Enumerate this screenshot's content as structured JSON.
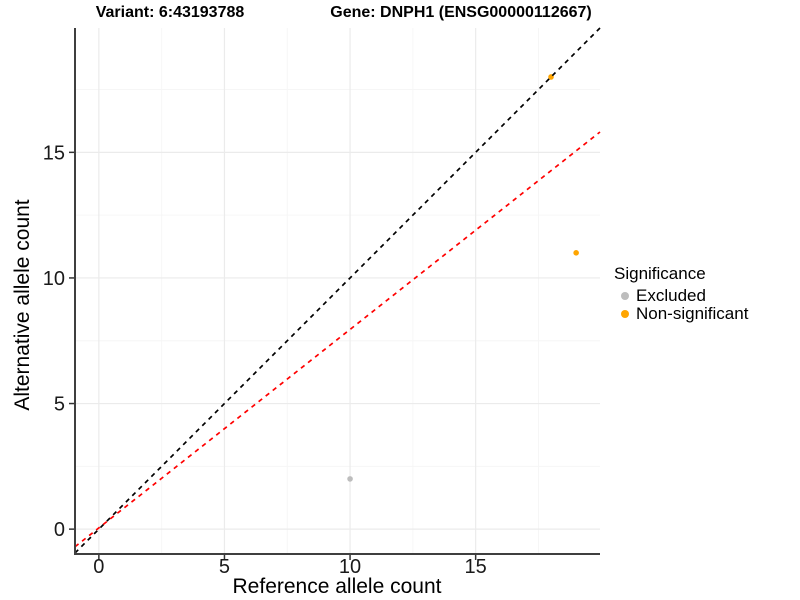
{
  "chart_data": {
    "type": "scatter",
    "titles": {
      "variant": "Variant: 6:43193788",
      "gene": "Gene: DNPH1 (ENSG00000112667)"
    },
    "xlabel": "Reference allele count",
    "ylabel": "Alternative allele count",
    "x_ticks": [
      0,
      5,
      10,
      15
    ],
    "y_ticks": [
      0,
      5,
      10,
      15
    ],
    "minor_gridlines": [
      2.5,
      7.5,
      12.5,
      17.5
    ],
    "axis_range": {
      "min": -0.95,
      "max": 19.95
    },
    "points": [
      {
        "x": 10,
        "y": 2,
        "significance": "Excluded"
      },
      {
        "x": 18,
        "y": 18,
        "significance": "Non-significant"
      },
      {
        "x": 19,
        "y": 11,
        "significance": "Non-significant"
      }
    ],
    "lines": [
      {
        "name": "identity-line",
        "slope": 1,
        "intercept": 0,
        "color": "#000000",
        "dash": "4.5,4.5"
      },
      {
        "name": "fit-line",
        "slope": 0.79,
        "intercept": 0.05,
        "color": "#FF0000",
        "dash": "4.5,4.5"
      }
    ],
    "legend": {
      "title": "Significance",
      "entries": [
        {
          "label": "Excluded",
          "color": "#BDBDBD"
        },
        {
          "label": "Non-significant",
          "color": "#FFA500"
        }
      ]
    },
    "colors": {
      "grid_major": "#EBEBEB",
      "grid_minor": "#F6F6F6",
      "axis_line": "#3F3F3F",
      "tick_mark": "#333333",
      "tick_text": "#1A1A1A",
      "background": "#FFFFFF"
    },
    "point_radius": 2.8
  }
}
